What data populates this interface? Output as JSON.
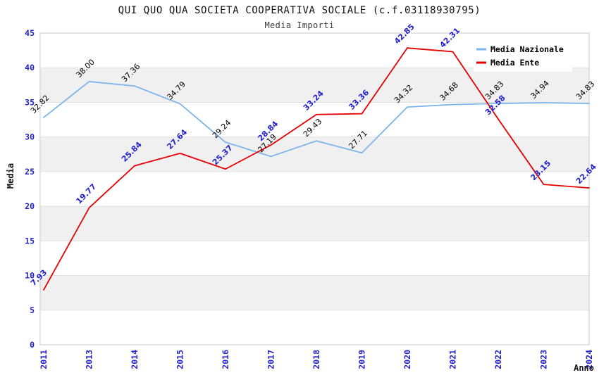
{
  "title": "QUI QUO QUA SOCIETA COOPERATIVA SOCIALE (c.f.03118930795)",
  "subtitle": "Media Importi",
  "chart_data": {
    "type": "line",
    "title": "QUI QUO QUA SOCIETA COOPERATIVA SOCIALE (c.f.03118930795)",
    "subtitle": "Media Importi",
    "categories": [
      "2011",
      "2013",
      "2014",
      "2015",
      "2016",
      "2017",
      "2018",
      "2019",
      "2020",
      "2021",
      "2022",
      "2023",
      "2024"
    ],
    "series": [
      {
        "name": "Media Nazionale",
        "color": "#7cb5ec",
        "label_color": "#000000",
        "label_bold": false,
        "values": [
          32.82,
          38.0,
          37.36,
          34.79,
          29.24,
          27.19,
          29.43,
          27.71,
          34.32,
          34.68,
          34.83,
          34.94,
          34.83
        ]
      },
      {
        "name": "Media Ente",
        "color": "#e60000",
        "label_color": "#2323cc",
        "label_bold": true,
        "values": [
          7.93,
          19.77,
          25.84,
          27.64,
          25.37,
          28.84,
          33.24,
          33.36,
          42.85,
          42.31,
          32.58,
          23.15,
          22.64
        ]
      }
    ],
    "xlabel": "Anno",
    "ylabel": "Media",
    "ylim": [
      0,
      45
    ],
    "ytick_step": 5,
    "yticks": [
      0,
      5,
      10,
      15,
      20,
      25,
      30,
      35,
      40,
      45
    ],
    "grid": true,
    "legend_position": "top-right",
    "colors": {
      "band_fill": "#f0f0f0",
      "grid_color": "#e2e2e2",
      "border_color": "#c9c9c9",
      "tick_label_color": "#2323cc",
      "legend_bg": "#ffffff"
    }
  }
}
